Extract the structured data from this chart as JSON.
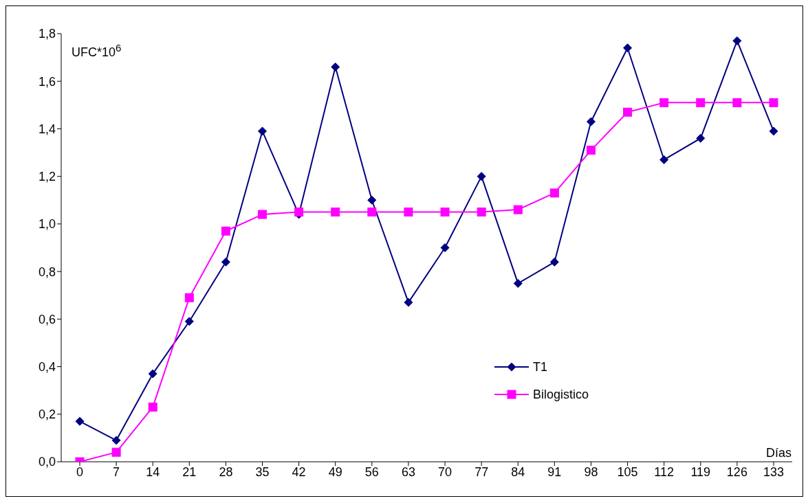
{
  "chart_data": {
    "type": "line",
    "categories": [
      "0",
      "7",
      "14",
      "21",
      "28",
      "35",
      "42",
      "49",
      "56",
      "63",
      "70",
      "77",
      "84",
      "91",
      "98",
      "105",
      "112",
      "119",
      "126",
      "133"
    ],
    "series": [
      {
        "name": "T1",
        "color": "#000080",
        "marker": "diamond",
        "values": [
          0.17,
          0.09,
          0.37,
          0.59,
          0.84,
          1.39,
          1.04,
          1.66,
          1.1,
          0.67,
          0.9,
          1.2,
          0.75,
          0.84,
          1.43,
          1.74,
          1.27,
          1.36,
          1.77,
          1.39
        ]
      },
      {
        "name": "Bilogistico",
        "color": "#ff00ff",
        "marker": "square",
        "values": [
          0.0,
          0.04,
          0.23,
          0.69,
          0.97,
          1.04,
          1.05,
          1.05,
          1.05,
          1.05,
          1.05,
          1.05,
          1.06,
          1.13,
          1.31,
          1.47,
          1.51,
          1.51,
          1.51,
          1.51
        ]
      }
    ],
    "ylabel": "UFC*10$^{6}$",
    "xlabel": "Días",
    "ylim": [
      0,
      1.8
    ],
    "yticks": [
      {
        "value": 0,
        "label": "0,0"
      },
      {
        "value": 0.2,
        "label": "0,2"
      },
      {
        "value": 0.4,
        "label": "0,4"
      },
      {
        "value": 0.6,
        "label": "0,6"
      },
      {
        "value": 0.8,
        "label": "0,8"
      },
      {
        "value": 1.0,
        "label": "1,0"
      },
      {
        "value": 1.2,
        "label": "1,2"
      },
      {
        "value": 1.4,
        "label": "1,4"
      },
      {
        "value": 1.6,
        "label": "1,6"
      },
      {
        "value": 1.8,
        "label": "1,8"
      }
    ],
    "legend": "right",
    "line_style": "solid"
  }
}
